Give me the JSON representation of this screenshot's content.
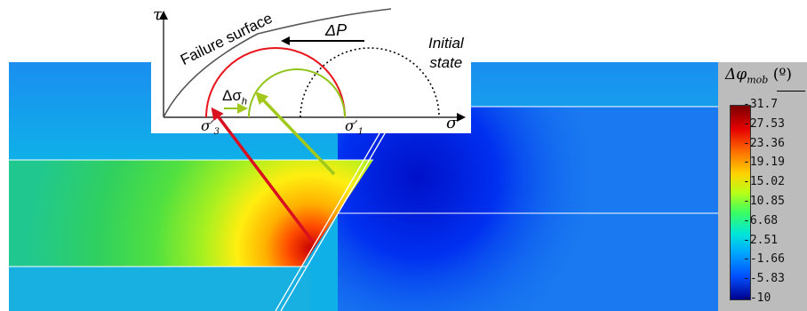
{
  "colors": {
    "failure_circle": "#e8141c",
    "shifted_circle": "#90c418",
    "initial_circle": "#000000",
    "red_arrow": "#d81020",
    "green_arrow": "#a2c81c"
  },
  "inset": {
    "tau_label": "τ",
    "sigma_label": "σ′",
    "failure_surface": "Failure surface",
    "delta_p": "ΔP",
    "initial_state_line1": "Initial",
    "initial_state_line2": "state",
    "delta_sigma_h": "Δσ",
    "delta_sigma_h_sub": "h",
    "sigma3": "σ′",
    "sigma3_sub": "3",
    "sigma1": "σ′",
    "sigma1_sub": "1"
  },
  "legend": {
    "title_main": "Δφ",
    "title_sub": "mob",
    "title_unit": "(º)",
    "ticks": [
      "31.7",
      "27.53",
      "23.36",
      "19.19",
      "15.02",
      "10.85",
      "6.68",
      "2.51",
      "-1.66",
      "-5.83",
      "-10"
    ]
  }
}
